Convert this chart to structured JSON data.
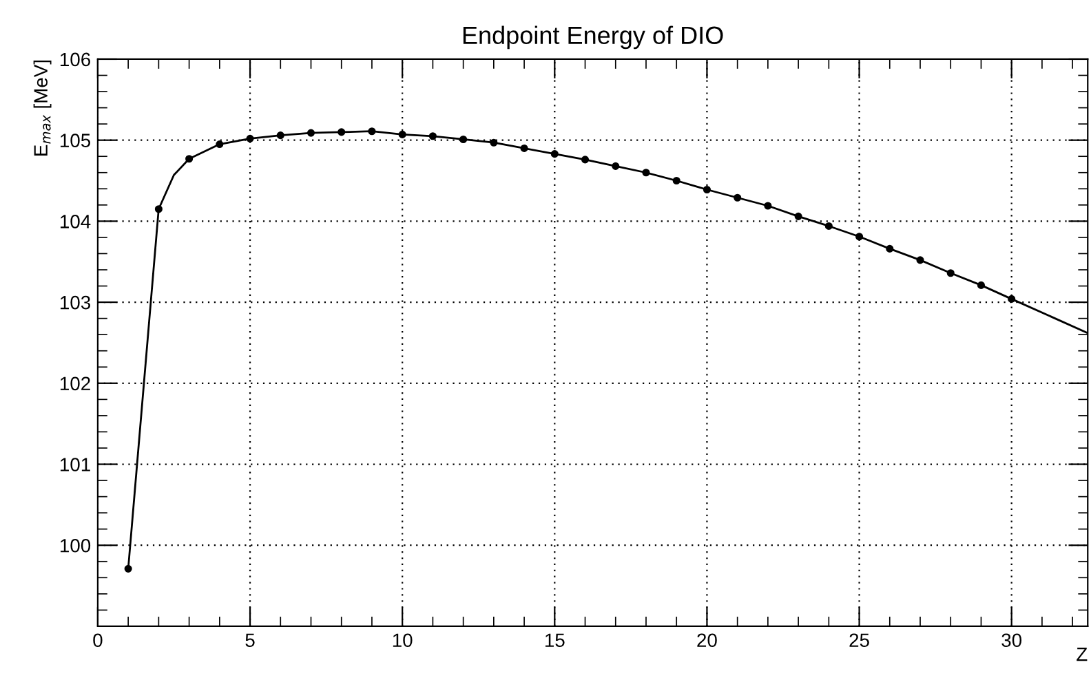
{
  "chart_data": {
    "type": "line",
    "title": "Endpoint Energy of DIO",
    "xlabel": "Z",
    "ylabel": "E$_{max}$ [MeV]",
    "series": [
      {
        "color": "#000000",
        "marker": "none",
        "x": [
          1,
          2,
          2.5,
          3,
          4,
          5,
          6,
          7,
          8,
          9,
          10,
          11,
          12,
          13,
          14,
          15,
          16,
          17,
          18,
          19,
          20,
          21,
          22,
          23,
          24,
          25,
          26,
          27,
          28,
          29,
          30,
          32.5
        ],
        "values": [
          99.71,
          104.15,
          104.57,
          104.77,
          104.95,
          105.02,
          105.06,
          105.09,
          105.1,
          105.11,
          105.07,
          105.05,
          105.01,
          104.97,
          104.9,
          104.83,
          104.76,
          104.68,
          104.6,
          104.5,
          104.39,
          104.29,
          104.19,
          104.06,
          103.94,
          103.81,
          103.66,
          103.52,
          103.36,
          103.21,
          103.04,
          102.62
        ]
      },
      {
        "type": "scatter",
        "color": "#000000",
        "marker": "circle",
        "x": [
          1,
          2,
          3,
          4,
          5,
          6,
          7,
          8,
          9,
          10,
          11,
          12,
          13,
          14,
          15,
          16,
          17,
          18,
          19,
          20,
          21,
          22,
          23,
          24,
          25,
          26,
          27,
          28,
          29,
          30
        ],
        "values": [
          99.71,
          104.15,
          104.77,
          104.95,
          105.02,
          105.06,
          105.09,
          105.1,
          105.11,
          105.07,
          105.05,
          105.01,
          104.97,
          104.9,
          104.83,
          104.76,
          104.68,
          104.6,
          104.5,
          104.39,
          104.29,
          104.19,
          104.06,
          103.94,
          103.81,
          103.66,
          103.52,
          103.36,
          103.21,
          103.04
        ]
      }
    ],
    "xlim": [
      0,
      32.5
    ],
    "xticks": [
      0,
      5,
      10,
      15,
      20,
      25,
      30
    ],
    "ylim": [
      99,
      106
    ],
    "yticks": [
      100,
      101,
      102,
      103,
      104,
      105,
      106
    ],
    "grid": true
  }
}
